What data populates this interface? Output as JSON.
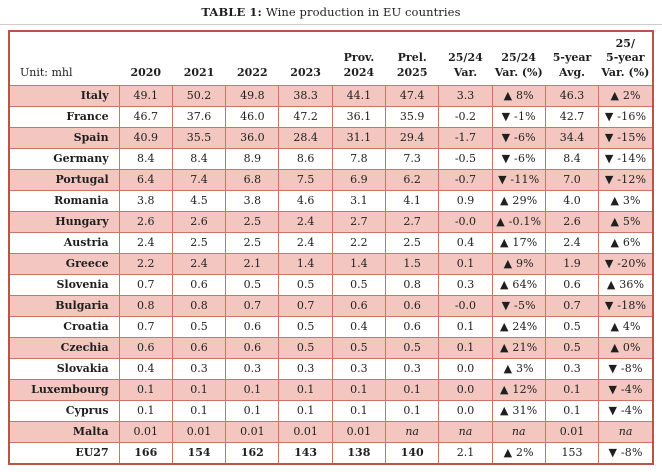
{
  "page": {
    "title_prefix": "TABLE 1:",
    "title_text": "Wine production in EU countries"
  },
  "colors": {
    "row_pink": "#f3c7c0",
    "inner_border": "#cd7367",
    "outer_border": "#bb5348",
    "title_rule": "#cccccc",
    "text": "#1f1f1f"
  },
  "table": {
    "unit_label": "Unit: mhl",
    "columns": [
      "2020",
      "2021",
      "2022",
      "2023",
      "Prov.\n2024",
      "Prel.\n2025",
      "25/24\nVar.",
      "25/24\nVar. (%)",
      "5-year\nAvg.",
      "25/\n5-year\nVar. (%)"
    ],
    "rows": [
      {
        "country": "Italy",
        "values": [
          "49.1",
          "50.2",
          "49.8",
          "38.3",
          "44.1",
          "47.4",
          "3.3",
          "▲ 8%",
          "46.3",
          "▲ 2%"
        ]
      },
      {
        "country": "France",
        "values": [
          "46.7",
          "37.6",
          "46.0",
          "47.2",
          "36.1",
          "35.9",
          "-0.2",
          "▼ -1%",
          "42.7",
          "▼ -16%"
        ]
      },
      {
        "country": "Spain",
        "values": [
          "40.9",
          "35.5",
          "36.0",
          "28.4",
          "31.1",
          "29.4",
          "-1.7",
          "▼ -6%",
          "34.4",
          "▼ -15%"
        ]
      },
      {
        "country": "Germany",
        "values": [
          "8.4",
          "8.4",
          "8.9",
          "8.6",
          "7.8",
          "7.3",
          "-0.5",
          "▼ -6%",
          "8.4",
          "▼ -14%"
        ]
      },
      {
        "country": "Portugal",
        "values": [
          "6.4",
          "7.4",
          "6.8",
          "7.5",
          "6.9",
          "6.2",
          "-0.7",
          "▼ -11%",
          "7.0",
          "▼ -12%"
        ]
      },
      {
        "country": "Romania",
        "values": [
          "3.8",
          "4.5",
          "3.8",
          "4.6",
          "3.1",
          "4.1",
          "0.9",
          "▲ 29%",
          "4.0",
          "▲ 3%"
        ]
      },
      {
        "country": "Hungary",
        "values": [
          "2.6",
          "2.6",
          "2.5",
          "2.4",
          "2.7",
          "2.7",
          "-0.0",
          "▲ -0.1%",
          "2.6",
          "▲ 5%"
        ]
      },
      {
        "country": "Austria",
        "values": [
          "2.4",
          "2.5",
          "2.5",
          "2.4",
          "2.2",
          "2.5",
          "0.4",
          "▲ 17%",
          "2.4",
          "▲ 6%"
        ]
      },
      {
        "country": "Greece",
        "values": [
          "2.2",
          "2.4",
          "2.1",
          "1.4",
          "1.4",
          "1.5",
          "0.1",
          "▲ 9%",
          "1.9",
          "▼ -20%"
        ]
      },
      {
        "country": "Slovenia",
        "values": [
          "0.7",
          "0.6",
          "0.5",
          "0.5",
          "0.5",
          "0.8",
          "0.3",
          "▲ 64%",
          "0.6",
          "▲ 36%"
        ]
      },
      {
        "country": "Bulgaria",
        "values": [
          "0.8",
          "0.8",
          "0.7",
          "0.7",
          "0.6",
          "0.6",
          "-0.0",
          "▼ -5%",
          "0.7",
          "▼ -18%"
        ]
      },
      {
        "country": "Croatia",
        "values": [
          "0.7",
          "0.5",
          "0.6",
          "0.5",
          "0.4",
          "0.6",
          "0.1",
          "▲ 24%",
          "0.5",
          "▲ 4%"
        ]
      },
      {
        "country": "Czechia",
        "values": [
          "0.6",
          "0.6",
          "0.6",
          "0.5",
          "0.5",
          "0.5",
          "0.1",
          "▲ 21%",
          "0.5",
          "▲ 0%"
        ]
      },
      {
        "country": "Slovakia",
        "values": [
          "0.4",
          "0.3",
          "0.3",
          "0.3",
          "0.3",
          "0.3",
          "0.0",
          "▲ 3%",
          "0.3",
          "▼ -8%"
        ]
      },
      {
        "country": "Luxembourg",
        "values": [
          "0.1",
          "0.1",
          "0.1",
          "0.1",
          "0.1",
          "0.1",
          "0.0",
          "▲ 12%",
          "0.1",
          "▼ -4%"
        ]
      },
      {
        "country": "Cyprus",
        "values": [
          "0.1",
          "0.1",
          "0.1",
          "0.1",
          "0.1",
          "0.1",
          "0.0",
          "▲ 31%",
          "0.1",
          "▼ -4%"
        ]
      },
      {
        "country": "Malta",
        "values": [
          "0.01",
          "0.01",
          "0.01",
          "0.01",
          "0.01",
          "na",
          "na",
          "na",
          "0.01",
          "na"
        ]
      },
      {
        "country": "EU27",
        "values": [
          "166",
          "154",
          "162",
          "143",
          "138",
          "140",
          "2.1",
          "▲ 2%",
          "153",
          "▼ -8%"
        ],
        "bold_cols": [
          0,
          1,
          2,
          3,
          4,
          5
        ]
      }
    ]
  }
}
